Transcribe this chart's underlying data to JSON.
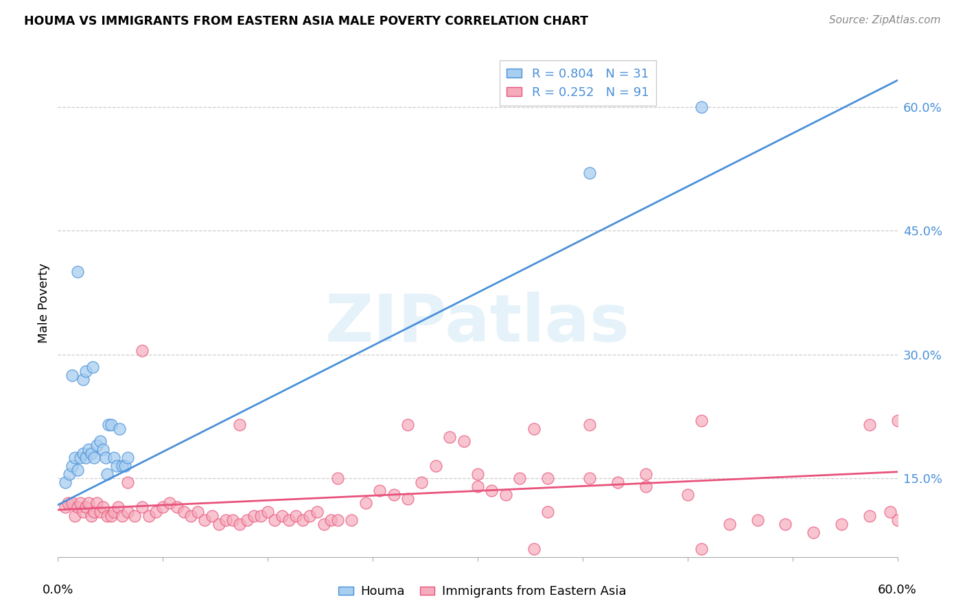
{
  "title": "HOUMA VS IMMIGRANTS FROM EASTERN ASIA MALE POVERTY CORRELATION CHART",
  "source": "Source: ZipAtlas.com",
  "ylabel": "Male Poverty",
  "xmin": 0.0,
  "xmax": 0.6,
  "ymin": 0.055,
  "ymax": 0.67,
  "legend_blue_r": "0.804",
  "legend_blue_n": "31",
  "legend_pink_r": "0.252",
  "legend_pink_n": "91",
  "blue_color": "#A8CEF0",
  "pink_color": "#F5ABBB",
  "blue_line_color": "#4A90D9",
  "pink_line_color": "#E8527A",
  "watermark_text": "ZIPatlas",
  "blue_line_x0": 0.0,
  "blue_line_y0": 0.118,
  "blue_line_x1": 0.6,
  "blue_line_y1": 0.632,
  "pink_line_x0": 0.0,
  "pink_line_y0": 0.112,
  "pink_line_x1": 0.6,
  "pink_line_y1": 0.158,
  "blue_scatter_x": [
    0.005,
    0.008,
    0.01,
    0.012,
    0.014,
    0.016,
    0.018,
    0.02,
    0.022,
    0.024,
    0.026,
    0.028,
    0.03,
    0.032,
    0.034,
    0.036,
    0.038,
    0.04,
    0.042,
    0.044,
    0.046,
    0.048,
    0.05,
    0.01,
    0.014,
    0.018,
    0.02,
    0.025,
    0.035,
    0.38,
    0.46
  ],
  "blue_scatter_y": [
    0.145,
    0.155,
    0.165,
    0.175,
    0.16,
    0.175,
    0.18,
    0.175,
    0.185,
    0.18,
    0.175,
    0.19,
    0.195,
    0.185,
    0.175,
    0.215,
    0.215,
    0.175,
    0.165,
    0.21,
    0.165,
    0.165,
    0.175,
    0.275,
    0.4,
    0.27,
    0.28,
    0.285,
    0.155,
    0.52,
    0.6
  ],
  "pink_scatter_x": [
    0.005,
    0.007,
    0.01,
    0.012,
    0.014,
    0.016,
    0.018,
    0.02,
    0.022,
    0.024,
    0.026,
    0.028,
    0.03,
    0.032,
    0.035,
    0.038,
    0.04,
    0.043,
    0.046,
    0.05,
    0.055,
    0.06,
    0.065,
    0.07,
    0.075,
    0.08,
    0.085,
    0.09,
    0.095,
    0.1,
    0.105,
    0.11,
    0.115,
    0.12,
    0.125,
    0.13,
    0.135,
    0.14,
    0.145,
    0.15,
    0.155,
    0.16,
    0.165,
    0.17,
    0.175,
    0.18,
    0.185,
    0.19,
    0.195,
    0.2,
    0.21,
    0.22,
    0.23,
    0.24,
    0.25,
    0.26,
    0.27,
    0.28,
    0.29,
    0.3,
    0.31,
    0.32,
    0.33,
    0.34,
    0.35,
    0.38,
    0.4,
    0.42,
    0.45,
    0.46,
    0.48,
    0.5,
    0.52,
    0.54,
    0.56,
    0.58,
    0.595,
    0.6,
    0.06,
    0.13,
    0.2,
    0.25,
    0.34,
    0.38,
    0.42,
    0.46,
    0.58,
    0.6,
    0.3,
    0.35,
    0.05
  ],
  "pink_scatter_y": [
    0.115,
    0.12,
    0.12,
    0.105,
    0.115,
    0.12,
    0.11,
    0.115,
    0.12,
    0.105,
    0.11,
    0.12,
    0.11,
    0.115,
    0.105,
    0.105,
    0.11,
    0.115,
    0.105,
    0.11,
    0.105,
    0.115,
    0.105,
    0.11,
    0.115,
    0.12,
    0.115,
    0.11,
    0.105,
    0.11,
    0.1,
    0.105,
    0.095,
    0.1,
    0.1,
    0.095,
    0.1,
    0.105,
    0.105,
    0.11,
    0.1,
    0.105,
    0.1,
    0.105,
    0.1,
    0.105,
    0.11,
    0.095,
    0.1,
    0.1,
    0.1,
    0.12,
    0.135,
    0.13,
    0.125,
    0.145,
    0.165,
    0.2,
    0.195,
    0.14,
    0.135,
    0.13,
    0.15,
    0.065,
    0.11,
    0.15,
    0.145,
    0.14,
    0.13,
    0.065,
    0.095,
    0.1,
    0.095,
    0.085,
    0.095,
    0.105,
    0.11,
    0.1,
    0.305,
    0.215,
    0.15,
    0.215,
    0.21,
    0.215,
    0.155,
    0.22,
    0.215,
    0.22,
    0.155,
    0.15,
    0.145
  ]
}
